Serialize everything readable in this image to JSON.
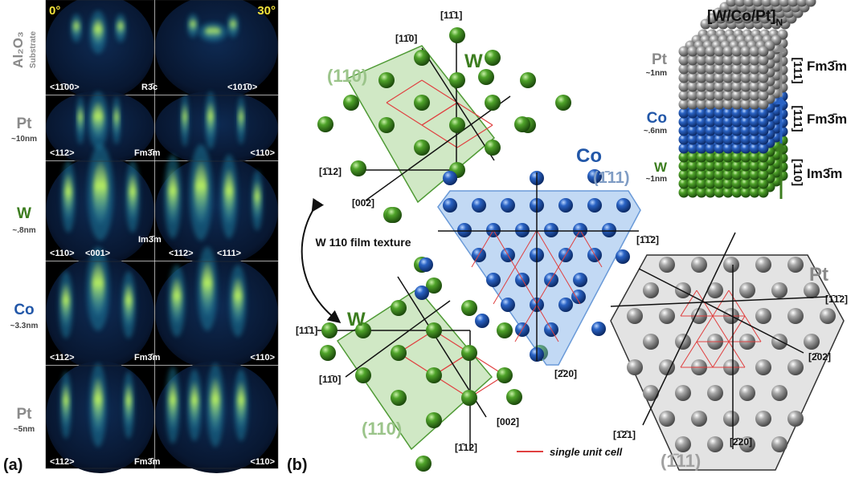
{
  "panel_a": {
    "label": "(a)",
    "angles": [
      "0°",
      "30°"
    ],
    "rows": [
      {
        "material": "Al₂O₃",
        "note": "Substrate",
        "labels": [
          "<11̄00>",
          "R3̄c",
          "<101̄0>"
        ]
      },
      {
        "material": "Pt",
        "note": "~10nm",
        "labels": [
          "<112>",
          "Fm3̄m",
          "<110>"
        ]
      },
      {
        "material": "W",
        "note": "~.8nm",
        "labels": [
          "<110>",
          "<001>",
          "Im3̄m",
          "<112>",
          "<111>"
        ]
      },
      {
        "material": "Co",
        "note": "~3.3nm",
        "labels": [
          "<112>",
          "Fm3̄m",
          "<110>"
        ]
      },
      {
        "material": "Pt",
        "note": "~5nm",
        "labels": [
          "<112>",
          "Fm3̄m",
          "<110>"
        ]
      }
    ]
  },
  "panel_b": {
    "label": "(b)",
    "w_top": {
      "element": "W",
      "plane": "(110)",
      "directions": [
        "[11̄1]",
        "[11̄0]",
        "[1̄12]",
        "[002]"
      ]
    },
    "texture_note": "W 110 film texture",
    "w_bottom": {
      "element": "W",
      "plane": "(110)",
      "directions": [
        "[11̄1]",
        "[11̄0]",
        "[002]",
        "[1̄12]"
      ]
    },
    "co": {
      "element": "Co",
      "plane": "(1̄11)",
      "directions": [
        "[1̄1̄2]",
        "[2̄20]"
      ]
    },
    "pt": {
      "element": "Pt",
      "plane": "(1̄11)",
      "directions": [
        "[1̄1̄2]",
        "[2̄02]",
        "[1̄2̄1]",
        "[2̄20]"
      ]
    },
    "legend": "single unit cell",
    "stack": {
      "title": "[W/Co/Pt]",
      "title_sub": "N",
      "layers": [
        {
          "element": "Pt",
          "thickness": "~1nm",
          "direction": "[111]",
          "group": "Fm3̄m"
        },
        {
          "element": "Co",
          "thickness": "~.6nm",
          "direction": "[111]",
          "group": "Fm3̄m"
        },
        {
          "element": "W",
          "thickness": "~1nm",
          "direction": "[110]",
          "group": "Im3̄m"
        }
      ]
    }
  }
}
